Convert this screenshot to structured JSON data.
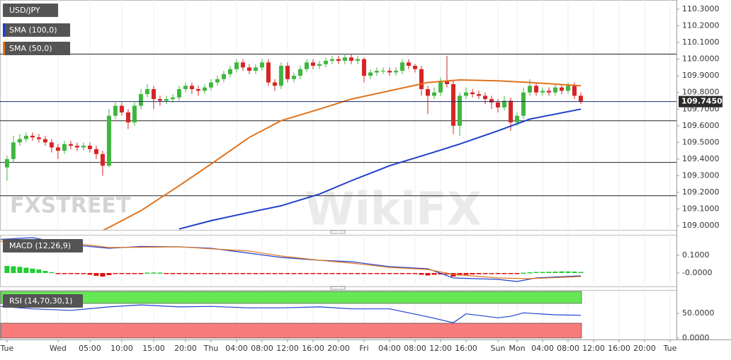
{
  "watermarks": [
    "FXSTREET",
    "WikiFX"
  ],
  "chart_data": [
    {
      "type": "candlestick",
      "name": "USD/JPY",
      "up_color": "#3fb63f",
      "down_color": "#d62424",
      "xlim": [
        -1.1,
        105
      ],
      "ylim": [
        108.975,
        110.355
      ],
      "grid": true,
      "xticks": [
        {
          "value": 0,
          "label": "Tue"
        },
        {
          "value": 8,
          "label": "Wed"
        },
        {
          "value": 13,
          "label": "05:00"
        },
        {
          "value": 18,
          "label": "10:00"
        },
        {
          "value": 23,
          "label": "15:00"
        },
        {
          "value": 28,
          "label": "20:00"
        },
        {
          "value": 32,
          "label": "Thu"
        },
        {
          "value": 36,
          "label": "04:00"
        },
        {
          "value": 40,
          "label": "08:00"
        },
        {
          "value": 44,
          "label": "12:00"
        },
        {
          "value": 48,
          "label": "16:00"
        },
        {
          "value": 52,
          "label": "20:00"
        },
        {
          "value": 56,
          "label": "Fri"
        },
        {
          "value": 60,
          "label": "04:00"
        },
        {
          "value": 64,
          "label": "08:00"
        },
        {
          "value": 68,
          "label": "12:00"
        },
        {
          "value": 72,
          "label": "16:00"
        },
        {
          "value": 77,
          "label": "Sun"
        },
        {
          "value": 80,
          "label": "Mon"
        },
        {
          "value": 84,
          "label": "04:00"
        },
        {
          "value": 88,
          "label": "08:00"
        },
        {
          "value": 92,
          "label": "12:00"
        },
        {
          "value": 96,
          "label": "16:00"
        },
        {
          "value": 100,
          "label": "20:00"
        },
        {
          "value": 104,
          "label": "Tue"
        }
      ],
      "yticks": [
        {
          "value": 110.3,
          "label": "110.3000"
        },
        {
          "value": 110.2,
          "label": "110.2000"
        },
        {
          "value": 110.1,
          "label": "110.1000"
        },
        {
          "value": 110.0,
          "label": "110.0000"
        },
        {
          "value": 109.9,
          "label": "109.9000"
        },
        {
          "value": 109.8,
          "label": "109.8000"
        },
        {
          "value": 109.7,
          "label": "109.7000"
        },
        {
          "value": 109.6,
          "label": "109.6000"
        },
        {
          "value": 109.5,
          "label": "109.5000"
        },
        {
          "value": 109.4,
          "label": "109.4000"
        },
        {
          "value": 109.3,
          "label": "109.3000"
        },
        {
          "value": 109.2,
          "label": "109.2000"
        },
        {
          "value": 109.1,
          "label": "109.1000"
        },
        {
          "value": 109.0,
          "label": "109.0000"
        }
      ],
      "hlines": [
        110.03,
        109.63,
        109.38,
        109.18
      ],
      "last_price": {
        "value": 109.745,
        "label": "109.7450"
      },
      "x": [
        0,
        1,
        2,
        3,
        4,
        5,
        6,
        7,
        8,
        9,
        10,
        11,
        12,
        13,
        14,
        15,
        16,
        17,
        18,
        19,
        20,
        21,
        22,
        23,
        24,
        25,
        26,
        27,
        28,
        29,
        30,
        31,
        32,
        33,
        34,
        35,
        36,
        37,
        38,
        39,
        40,
        41,
        42,
        43,
        44,
        45,
        46,
        47,
        48,
        49,
        50,
        51,
        52,
        53,
        54,
        55,
        56,
        57,
        58,
        59,
        60,
        61,
        62,
        63,
        64,
        65,
        66,
        67,
        68,
        69,
        70,
        71,
        72,
        73,
        74,
        75,
        76,
        77,
        78,
        79,
        80,
        81,
        82,
        83,
        84,
        85,
        86,
        87,
        88,
        89,
        90
      ],
      "open": [
        109.35,
        109.4,
        109.5,
        109.52,
        109.54,
        109.53,
        109.52,
        109.5,
        109.47,
        109.45,
        109.49,
        109.48,
        109.47,
        109.48,
        109.46,
        109.43,
        109.36,
        109.66,
        109.72,
        109.68,
        109.62,
        109.72,
        109.79,
        109.82,
        109.76,
        109.75,
        109.76,
        109.77,
        109.82,
        109.84,
        109.82,
        109.81,
        109.83,
        109.86,
        109.88,
        109.91,
        109.94,
        109.98,
        109.95,
        109.93,
        109.95,
        109.98,
        109.86,
        109.84,
        109.96,
        109.88,
        109.9,
        109.94,
        109.98,
        109.96,
        109.97,
        109.99,
        110.0,
        109.99,
        110.01,
        109.99,
        110.0,
        109.9,
        109.92,
        109.93,
        109.93,
        109.92,
        109.93,
        109.98,
        109.96,
        109.94,
        109.82,
        109.78,
        109.8,
        109.87,
        109.85,
        109.6,
        109.78,
        109.8,
        109.79,
        109.78,
        109.76,
        109.74,
        109.71,
        109.75,
        109.62,
        109.66,
        109.8,
        109.84,
        109.8,
        109.81,
        109.8,
        109.83,
        109.81,
        109.84,
        109.78
      ],
      "high": [
        109.42,
        109.54,
        109.55,
        109.56,
        109.56,
        109.55,
        109.54,
        109.52,
        109.49,
        109.51,
        109.51,
        109.5,
        109.5,
        109.5,
        109.48,
        109.45,
        109.7,
        109.74,
        109.74,
        109.7,
        109.74,
        109.82,
        109.85,
        109.84,
        109.78,
        109.78,
        109.79,
        109.84,
        109.86,
        109.86,
        109.84,
        109.85,
        109.88,
        109.9,
        109.93,
        109.96,
        110.0,
        110.0,
        109.97,
        109.97,
        110.0,
        110.0,
        109.88,
        109.98,
        109.98,
        109.92,
        109.96,
        110.0,
        110.0,
        109.99,
        110.01,
        110.02,
        110.02,
        110.03,
        110.03,
        110.02,
        110.01,
        109.94,
        109.95,
        109.95,
        109.95,
        109.95,
        110.0,
        110.0,
        109.97,
        109.96,
        109.84,
        109.83,
        109.89,
        110.02,
        109.87,
        109.8,
        109.83,
        109.82,
        109.81,
        109.8,
        109.78,
        109.76,
        109.78,
        109.77,
        109.68,
        109.83,
        109.88,
        109.86,
        109.83,
        109.83,
        109.85,
        109.85,
        109.86,
        109.86,
        109.8
      ],
      "low": [
        109.27,
        109.38,
        109.48,
        109.5,
        109.51,
        109.5,
        109.48,
        109.44,
        109.4,
        109.43,
        109.46,
        109.45,
        109.45,
        109.44,
        109.4,
        109.3,
        109.35,
        109.64,
        109.66,
        109.58,
        109.6,
        109.7,
        109.77,
        109.7,
        109.72,
        109.73,
        109.74,
        109.75,
        109.8,
        109.79,
        109.78,
        109.79,
        109.81,
        109.84,
        109.86,
        109.89,
        109.92,
        109.93,
        109.91,
        109.91,
        109.93,
        109.84,
        109.81,
        109.82,
        109.86,
        109.86,
        109.88,
        109.92,
        109.94,
        109.94,
        109.95,
        109.97,
        109.97,
        109.97,
        109.97,
        109.97,
        109.86,
        109.88,
        109.9,
        109.91,
        109.9,
        109.9,
        109.91,
        109.94,
        109.92,
        109.78,
        109.67,
        109.76,
        109.78,
        109.83,
        109.55,
        109.54,
        109.76,
        109.77,
        109.76,
        109.73,
        109.7,
        109.68,
        109.69,
        109.57,
        109.6,
        109.64,
        109.78,
        109.78,
        109.78,
        109.78,
        109.78,
        109.79,
        109.79,
        109.76,
        109.73
      ],
      "close": [
        109.4,
        109.5,
        109.52,
        109.54,
        109.53,
        109.52,
        109.5,
        109.47,
        109.45,
        109.49,
        109.48,
        109.47,
        109.48,
        109.46,
        109.43,
        109.36,
        109.66,
        109.72,
        109.68,
        109.62,
        109.72,
        109.79,
        109.82,
        109.76,
        109.75,
        109.76,
        109.77,
        109.82,
        109.84,
        109.82,
        109.81,
        109.83,
        109.86,
        109.88,
        109.91,
        109.94,
        109.98,
        109.95,
        109.93,
        109.95,
        109.98,
        109.86,
        109.84,
        109.96,
        109.88,
        109.9,
        109.94,
        109.98,
        109.96,
        109.97,
        109.99,
        110.0,
        109.99,
        110.01,
        109.99,
        110.0,
        109.9,
        109.92,
        109.93,
        109.93,
        109.92,
        109.93,
        109.98,
        109.96,
        109.94,
        109.82,
        109.78,
        109.8,
        109.87,
        109.85,
        109.6,
        109.78,
        109.8,
        109.79,
        109.78,
        109.76,
        109.74,
        109.71,
        109.75,
        109.62,
        109.66,
        109.8,
        109.84,
        109.8,
        109.81,
        109.8,
        109.83,
        109.81,
        109.84,
        109.78,
        109.745
      ],
      "lines": [
        {
          "name": "SMA (100,0)",
          "color": "#1f3fcc",
          "x": [
            27,
            32,
            38,
            43,
            49,
            54,
            60,
            66,
            71,
            77,
            82,
            90
          ],
          "values": [
            108.98,
            109.03,
            109.08,
            109.12,
            109.19,
            109.27,
            109.36,
            109.43,
            109.49,
            109.57,
            109.64,
            109.7
          ]
        },
        {
          "name": "SMA (50,0)",
          "color": "#e0731c",
          "x": [
            15,
            21,
            27,
            32,
            38,
            43,
            49,
            54,
            60,
            66,
            71,
            77,
            82,
            90
          ],
          "values": [
            108.97,
            109.09,
            109.24,
            109.37,
            109.53,
            109.63,
            109.7,
            109.76,
            109.81,
            109.86,
            109.875,
            109.87,
            109.86,
            109.84
          ]
        }
      ]
    },
    {
      "type": "macd",
      "name": "MACD (12,26,9)",
      "xlim": [
        -1.1,
        105
      ],
      "ylim": [
        -0.076,
        0.216
      ],
      "yticks": [
        {
          "value": 0.1,
          "label": "0.1000"
        },
        {
          "value": 0,
          "label": "-0.0000"
        }
      ],
      "lines": [
        {
          "color": "#2040d0",
          "x": [
            -1,
            4,
            10,
            16,
            21,
            27,
            32,
            38,
            43,
            49,
            54,
            60,
            66,
            70,
            77,
            80,
            83,
            90
          ],
          "values": [
            0.19,
            0.2,
            0.16,
            0.14,
            0.15,
            0.148,
            0.14,
            0.112,
            0.088,
            0.072,
            0.064,
            0.036,
            0.024,
            -0.028,
            -0.036,
            -0.048,
            -0.028,
            -0.016
          ]
        },
        {
          "color": "#e0731c",
          "x": [
            -1,
            10,
            16,
            27,
            38,
            43,
            49,
            54,
            60,
            66,
            70,
            77,
            82,
            90
          ],
          "values": [
            0.18,
            0.17,
            0.144,
            0.148,
            0.124,
            0.096,
            0.072,
            0.056,
            0.032,
            0.02,
            -0.008,
            -0.028,
            -0.032,
            -0.02
          ]
        }
      ],
      "histogram": {
        "up_color": "#22cc33",
        "down_color": "#e01010",
        "x": [
          0,
          1,
          2,
          3,
          4,
          5,
          6,
          7,
          8,
          9,
          10,
          11,
          12,
          13,
          14,
          15,
          16,
          17,
          18,
          19,
          20,
          21,
          22,
          23,
          24,
          25,
          26,
          27,
          28,
          29,
          30,
          31,
          32,
          33,
          34,
          35,
          36,
          37,
          38,
          39,
          40,
          41,
          42,
          43,
          44,
          45,
          46,
          47,
          48,
          49,
          50,
          51,
          52,
          53,
          54,
          55,
          56,
          57,
          58,
          59,
          60,
          61,
          62,
          63,
          64,
          65,
          66,
          67,
          68,
          69,
          70,
          71,
          72,
          73,
          74,
          75,
          76,
          77,
          78,
          79,
          80,
          81,
          82,
          83,
          84,
          85,
          86,
          87,
          88,
          89,
          90
        ],
        "values": [
          0.04,
          0.038,
          0.035,
          0.03,
          0.025,
          0.02,
          0.012,
          0.005,
          -0.002,
          -0.003,
          -0.004,
          -0.004,
          -0.006,
          -0.01,
          -0.016,
          -0.02,
          -0.012,
          -0.006,
          -0.004,
          -0.005,
          -0.003,
          -0.002,
          0.002,
          0.003,
          0.002,
          -0.002,
          -0.003,
          -0.004,
          -0.004,
          -0.004,
          -0.005,
          -0.004,
          -0.005,
          -0.004,
          -0.004,
          -0.003,
          -0.003,
          -0.004,
          -0.005,
          -0.004,
          -0.003,
          -0.004,
          -0.005,
          -0.004,
          -0.003,
          -0.003,
          -0.003,
          -0.003,
          -0.004,
          -0.003,
          -0.003,
          -0.003,
          -0.003,
          -0.004,
          -0.004,
          -0.003,
          -0.006,
          -0.006,
          -0.005,
          -0.005,
          -0.005,
          -0.005,
          -0.004,
          -0.005,
          -0.006,
          -0.01,
          -0.014,
          -0.01,
          -0.008,
          -0.008,
          -0.02,
          -0.014,
          -0.01,
          -0.008,
          -0.007,
          -0.006,
          -0.006,
          -0.005,
          -0.004,
          -0.006,
          -0.003,
          0.002,
          0.004,
          0.006,
          0.006,
          0.007,
          0.008,
          0.009,
          0.009,
          0.008,
          0.006
        ]
      }
    },
    {
      "type": "rsi",
      "name": "RSI (14,70,30,1)",
      "xlim": [
        -1.1,
        105
      ],
      "ylim": [
        -2.9,
        97.1
      ],
      "yticks": [
        {
          "value": 50,
          "label": "50.0000"
        },
        {
          "value": 0,
          "label": "0.0000"
        }
      ],
      "overbought": 70,
      "oversold": 30,
      "overbought_color": "#66e855",
      "oversold_color": "#f77b7b",
      "lines": [
        {
          "color": "#2040d0",
          "x": [
            -1,
            4,
            10,
            16,
            21,
            27,
            32,
            38,
            43,
            49,
            54,
            60,
            66,
            70,
            72,
            77,
            79,
            81,
            86,
            90
          ],
          "values": [
            64,
            59,
            56,
            63,
            67,
            63,
            64,
            61,
            61,
            63,
            59,
            59,
            43,
            31,
            49,
            41,
            44,
            51,
            47,
            46
          ]
        }
      ]
    }
  ]
}
